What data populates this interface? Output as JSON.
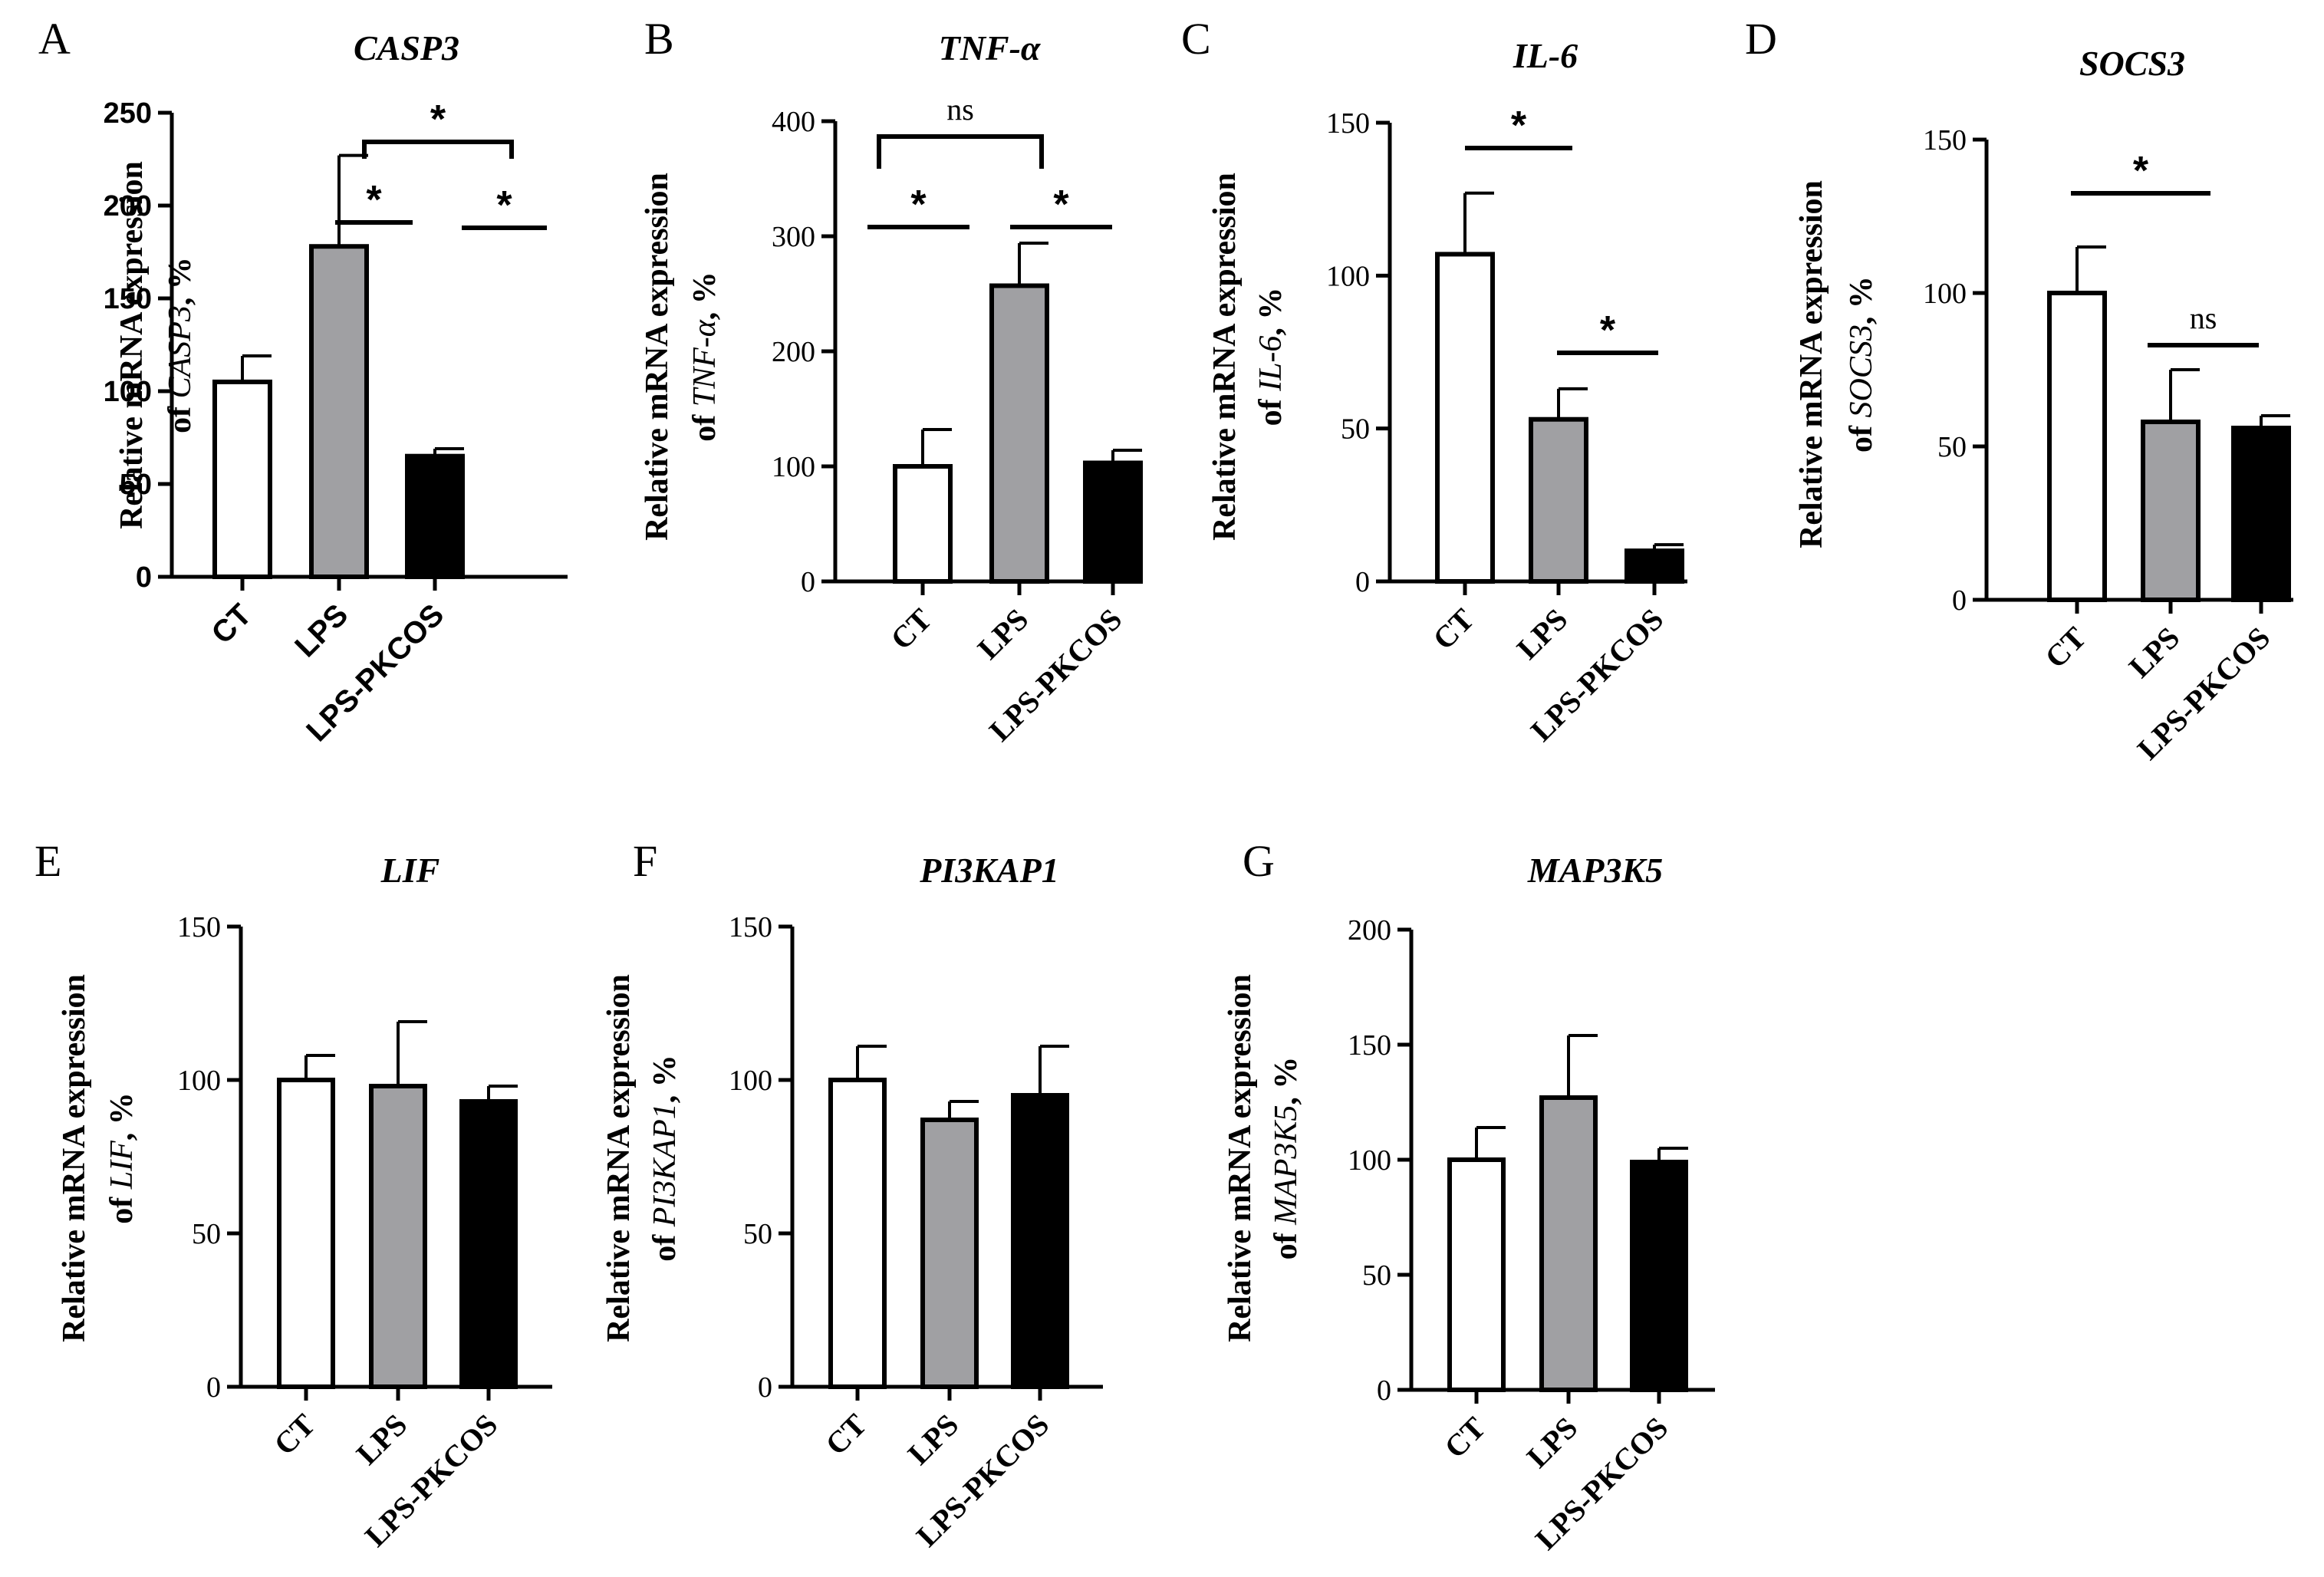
{
  "figure": {
    "panels": [
      {
        "letter": "A",
        "title": "CASP3",
        "ylabel_line1": "Relative mRNA  expression",
        "ylabel_prefix": "of ",
        "ylabel_gene": "CASP3",
        "ylabel_suffix": ", %"
      },
      {
        "letter": "B",
        "title": "TNF-α",
        "ylabel_line1": "Relative mRNA  expression",
        "ylabel_prefix": "of ",
        "ylabel_gene": "TNF-α",
        "ylabel_suffix": ", %"
      },
      {
        "letter": "C",
        "title": "IL-6",
        "ylabel_line1": "Relative mRNA  expression",
        "ylabel_prefix": "of ",
        "ylabel_gene": "IL-6",
        "ylabel_suffix": ", %"
      },
      {
        "letter": "D",
        "title": "SOCS3",
        "ylabel_line1": "Relative mRNA  expression",
        "ylabel_prefix": "of ",
        "ylabel_gene": "SOCS3",
        "ylabel_suffix": ", %"
      },
      {
        "letter": "E",
        "title": "LIF",
        "ylabel_line1": "Relative mRNA  expression",
        "ylabel_prefix": "of ",
        "ylabel_gene": "LIF",
        "ylabel_suffix": ", %"
      },
      {
        "letter": "F",
        "title": "PI3KAP1",
        "ylabel_line1": "Relative mRNA  expression",
        "ylabel_prefix": "of ",
        "ylabel_gene": "PI3KAP1",
        "ylabel_suffix": ", %"
      },
      {
        "letter": "G",
        "title": "MAP3K5",
        "ylabel_line1": "Relative mRNA  expression",
        "ylabel_prefix": "of ",
        "ylabel_gene": "MAP3K5",
        "ylabel_suffix": ", %"
      }
    ],
    "colors": {
      "CT": "#ffffff",
      "LPS": "#a0a0a3",
      "LPS-PKCOS": "#000000",
      "stroke": "#000000"
    }
  },
  "chart_data": [
    {
      "panel": "A",
      "type": "bar",
      "title": "CASP3",
      "categories": [
        "CT",
        "LPS",
        "LPS-PKCOS"
      ],
      "values": [
        105,
        178,
        65
      ],
      "errors": [
        14,
        49,
        4
      ],
      "ylim": [
        0,
        250
      ],
      "yticks": [
        0,
        50,
        100,
        150,
        200,
        250
      ],
      "comparisons": [
        {
          "from": 0,
          "to": 1,
          "label": "*"
        },
        {
          "from": 1,
          "to": 2,
          "label": "*"
        },
        {
          "from": 0,
          "to": 2,
          "label": "*"
        }
      ]
    },
    {
      "panel": "B",
      "type": "bar",
      "title": "TNF-α",
      "categories": [
        "CT",
        "LPS",
        "LPS-PKCOS"
      ],
      "values": [
        100,
        257,
        103
      ],
      "errors": [
        32,
        37,
        11
      ],
      "ylim": [
        0,
        400
      ],
      "yticks": [
        0,
        100,
        200,
        300,
        400
      ],
      "comparisons": [
        {
          "from": 0,
          "to": 1,
          "label": "*"
        },
        {
          "from": 1,
          "to": 2,
          "label": "*"
        },
        {
          "from": 0,
          "to": 2,
          "label": "ns"
        }
      ]
    },
    {
      "panel": "C",
      "type": "bar",
      "title": "IL-6",
      "categories": [
        "CT",
        "LPS",
        "LPS-PKCOS"
      ],
      "values": [
        107,
        53,
        10
      ],
      "errors": [
        20,
        10,
        2
      ],
      "ylim": [
        0,
        150
      ],
      "yticks": [
        0,
        50,
        100,
        150
      ],
      "comparisons": [
        {
          "from": 0,
          "to": 1,
          "label": "*"
        },
        {
          "from": 1,
          "to": 2,
          "label": "*"
        }
      ]
    },
    {
      "panel": "D",
      "type": "bar",
      "title": "SOCS3",
      "categories": [
        "CT",
        "LPS",
        "LPS-PKCOS"
      ],
      "values": [
        100,
        58,
        56
      ],
      "errors": [
        15,
        17,
        4
      ],
      "ylim": [
        0,
        150
      ],
      "yticks": [
        0,
        50,
        100,
        150
      ],
      "comparisons": [
        {
          "from": 0,
          "to": 1,
          "label": "*"
        },
        {
          "from": 1,
          "to": 2,
          "label": "ns"
        }
      ]
    },
    {
      "panel": "E",
      "type": "bar",
      "title": "LIF",
      "categories": [
        "CT",
        "LPS",
        "LPS-PKCOS"
      ],
      "values": [
        100,
        98,
        93
      ],
      "errors": [
        8,
        21,
        5
      ],
      "ylim": [
        0,
        150
      ],
      "yticks": [
        0,
        50,
        100,
        150
      ],
      "comparisons": []
    },
    {
      "panel": "F",
      "type": "bar",
      "title": "PI3KAP1",
      "categories": [
        "CT",
        "LPS",
        "LPS-PKCOS"
      ],
      "values": [
        100,
        87,
        95
      ],
      "errors": [
        11,
        6,
        16
      ],
      "ylim": [
        0,
        150
      ],
      "yticks": [
        0,
        50,
        100,
        150
      ],
      "comparisons": []
    },
    {
      "panel": "G",
      "type": "bar",
      "title": "MAP3K5",
      "categories": [
        "CT",
        "LPS",
        "LPS-PKCOS"
      ],
      "values": [
        100,
        127,
        99
      ],
      "errors": [
        14,
        27,
        6
      ],
      "ylim": [
        0,
        200
      ],
      "yticks": [
        0,
        50,
        100,
        150,
        200
      ],
      "comparisons": []
    }
  ]
}
